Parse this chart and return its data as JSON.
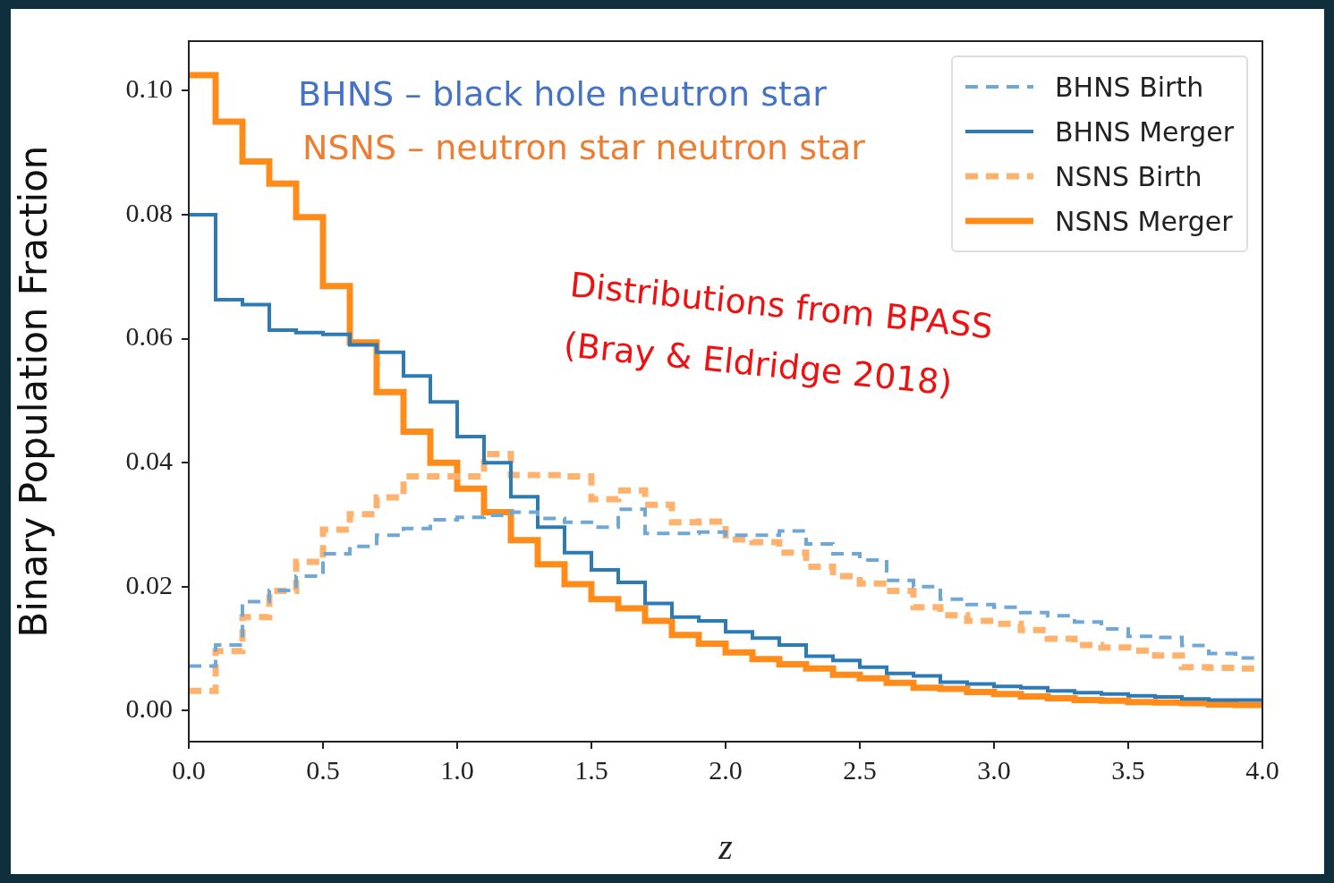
{
  "chart_data": {
    "type": "histogram",
    "xlabel": "z",
    "ylabel": "Binary Population Fraction",
    "bins": [
      0,
      0.1,
      0.2,
      0.3,
      0.4,
      0.5,
      0.6,
      0.7,
      0.8,
      0.9,
      1.0,
      1.1,
      1.2,
      1.3,
      1.4,
      1.5,
      1.6,
      1.7,
      1.8,
      1.9,
      2.0,
      2.1,
      2.2,
      2.3,
      2.4,
      2.5,
      2.6,
      2.7,
      2.8,
      2.9,
      3.0,
      3.1,
      3.2,
      3.3,
      3.4,
      3.5,
      3.6,
      3.7,
      3.8,
      3.9,
      4.0
    ],
    "series": [
      {
        "name": "BHNS Birth",
        "color": "#6fa8d6",
        "line_style": "dashed",
        "values": [
          0.0072,
          0.0106,
          0.0176,
          0.0194,
          0.0217,
          0.0253,
          0.0265,
          0.0283,
          0.0294,
          0.0308,
          0.0312,
          0.0315,
          0.032,
          0.031,
          0.0304,
          0.0296,
          0.0325,
          0.0286,
          0.0286,
          0.0288,
          0.0283,
          0.0283,
          0.029,
          0.0269,
          0.0253,
          0.0243,
          0.021,
          0.02,
          0.018,
          0.0171,
          0.0167,
          0.0158,
          0.0153,
          0.0143,
          0.0132,
          0.012,
          0.0118,
          0.0105,
          0.0092,
          0.0085
        ]
      },
      {
        "name": "BHNS Merger",
        "color": "#2c7bb6",
        "line_style": "solid",
        "values": [
          0.08,
          0.0663,
          0.0655,
          0.0614,
          0.061,
          0.0607,
          0.059,
          0.0578,
          0.054,
          0.0498,
          0.0442,
          0.04,
          0.0345,
          0.0296,
          0.0255,
          0.0227,
          0.0207,
          0.0173,
          0.0151,
          0.0145,
          0.0127,
          0.0117,
          0.0106,
          0.0088,
          0.0081,
          0.007,
          0.006,
          0.0056,
          0.0046,
          0.0043,
          0.0039,
          0.0037,
          0.0032,
          0.0029,
          0.0027,
          0.0024,
          0.0022,
          0.0019,
          0.0017,
          0.0017
        ]
      },
      {
        "name": "NSNS Birth",
        "color": "#ffb26e",
        "line_style": "dashed",
        "values": [
          0.0032,
          0.0096,
          0.0151,
          0.0193,
          0.024,
          0.0292,
          0.0317,
          0.0344,
          0.0378,
          0.0378,
          0.0378,
          0.0414,
          0.038,
          0.038,
          0.0378,
          0.0341,
          0.0355,
          0.0332,
          0.0304,
          0.0305,
          0.0276,
          0.0272,
          0.0255,
          0.0232,
          0.0217,
          0.0205,
          0.0193,
          0.0167,
          0.0154,
          0.0145,
          0.014,
          0.013,
          0.0116,
          0.0106,
          0.0102,
          0.0097,
          0.0089,
          0.007,
          0.0069,
          0.0068
        ]
      },
      {
        "name": "NSNS Merger",
        "color": "#ff8c1a",
        "line_style": "solid",
        "values": [
          0.1025,
          0.095,
          0.0886,
          0.085,
          0.0796,
          0.0685,
          0.0594,
          0.0514,
          0.045,
          0.04,
          0.0358,
          0.032,
          0.0275,
          0.0236,
          0.0204,
          0.018,
          0.0165,
          0.0145,
          0.0122,
          0.0108,
          0.0094,
          0.0083,
          0.0075,
          0.0068,
          0.0058,
          0.0052,
          0.0045,
          0.0037,
          0.0035,
          0.003,
          0.0027,
          0.0023,
          0.002,
          0.0017,
          0.0016,
          0.0014,
          0.0013,
          0.0012,
          0.001,
          0.0009
        ]
      }
    ],
    "xlim": [
      0,
      4
    ],
    "xticks": [
      {
        "value": 0,
        "label": "0.0"
      },
      {
        "value": 0.5,
        "label": "0.5"
      },
      {
        "value": 1,
        "label": "1.0"
      },
      {
        "value": 1.5,
        "label": "1.5"
      },
      {
        "value": 2,
        "label": "2.0"
      },
      {
        "value": 2.5,
        "label": "2.5"
      },
      {
        "value": 3,
        "label": "3.0"
      },
      {
        "value": 3.5,
        "label": "3.5"
      },
      {
        "value": 4,
        "label": "4.0"
      }
    ],
    "ylim": [
      -0.005,
      0.108
    ],
    "yticks": [
      {
        "value": 0,
        "label": "0.00"
      },
      {
        "value": 0.02,
        "label": "0.02"
      },
      {
        "value": 0.04,
        "label": "0.04"
      },
      {
        "value": 0.06,
        "label": "0.06"
      },
      {
        "value": 0.08,
        "label": "0.08"
      },
      {
        "value": 0.1,
        "label": "0.10"
      }
    ],
    "grid": false,
    "legend": "top right",
    "annotations": [
      "BHNS – black hole neutron star",
      "NSNS – neutron star neutron star",
      "Distributions from BPASS",
      "(Bray & Eldridge 2018)"
    ]
  }
}
